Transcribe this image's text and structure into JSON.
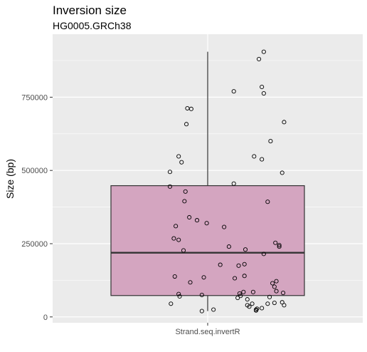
{
  "chart_data": {
    "type": "box",
    "title": "Inversion size",
    "subtitle": "HG0005.GRCh38",
    "xlabel": "",
    "ylabel": "Size (bp)",
    "categories": [
      "Strand.seq.invertR"
    ],
    "ylim": [
      -20000,
      965000
    ],
    "yticks": [
      0,
      250000,
      500000,
      750000
    ],
    "ytick_labels": [
      "0",
      "250000",
      "500000",
      "750000"
    ],
    "grid": true,
    "colors": {
      "panel_bg": "#ebebeb",
      "grid": "#ffffff",
      "box_fill": "#d4a5c0",
      "box_stroke": "#333333",
      "point_stroke": "#000000"
    },
    "box": {
      "lower_whisker": 20000,
      "q1": 73000,
      "median": 219000,
      "q3": 448000,
      "upper_whisker": 905000
    },
    "points": [
      {
        "x": 0.58,
        "y": 905000
      },
      {
        "x": 0.53,
        "y": 880000
      },
      {
        "x": 0.27,
        "y": 770000
      },
      {
        "x": 0.56,
        "y": 785000
      },
      {
        "x": 0.58,
        "y": 763000
      },
      {
        "x": -0.21,
        "y": 712000
      },
      {
        "x": -0.17,
        "y": 710000
      },
      {
        "x": -0.22,
        "y": 658000
      },
      {
        "x": 0.79,
        "y": 665000
      },
      {
        "x": 0.65,
        "y": 600000
      },
      {
        "x": -0.3,
        "y": 548000
      },
      {
        "x": -0.27,
        "y": 528000
      },
      {
        "x": 0.48,
        "y": 548000
      },
      {
        "x": 0.56,
        "y": 538000
      },
      {
        "x": -0.39,
        "y": 495000
      },
      {
        "x": 0.77,
        "y": 492000
      },
      {
        "x": 0.27,
        "y": 455000
      },
      {
        "x": -0.39,
        "y": 445000
      },
      {
        "x": -0.23,
        "y": 428000
      },
      {
        "x": -0.24,
        "y": 395000
      },
      {
        "x": 0.62,
        "y": 393000
      },
      {
        "x": -0.19,
        "y": 340000
      },
      {
        "x": -0.11,
        "y": 330000
      },
      {
        "x": -0.01,
        "y": 320000
      },
      {
        "x": 0.17,
        "y": 307000
      },
      {
        "x": -0.33,
        "y": 310000
      },
      {
        "x": -0.35,
        "y": 268000
      },
      {
        "x": -0.3,
        "y": 263000
      },
      {
        "x": 0.7,
        "y": 253000
      },
      {
        "x": 0.74,
        "y": 245000
      },
      {
        "x": 0.74,
        "y": 240000
      },
      {
        "x": 0.22,
        "y": 240000
      },
      {
        "x": 0.39,
        "y": 230000
      },
      {
        "x": -0.25,
        "y": 227000
      },
      {
        "x": 0.58,
        "y": 215000
      },
      {
        "x": 0.38,
        "y": 180000
      },
      {
        "x": 0.32,
        "y": 175000
      },
      {
        "x": 0.13,
        "y": 178000
      },
      {
        "x": -0.34,
        "y": 138000
      },
      {
        "x": 0.38,
        "y": 140000
      },
      {
        "x": 0.28,
        "y": 132000
      },
      {
        "x": -0.04,
        "y": 135000
      },
      {
        "x": 0.71,
        "y": 122000
      },
      {
        "x": -0.18,
        "y": 118000
      },
      {
        "x": 0.67,
        "y": 115000
      },
      {
        "x": 0.69,
        "y": 103000
      },
      {
        "x": 0.71,
        "y": 88000
      },
      {
        "x": 0.47,
        "y": 85000
      },
      {
        "x": 0.37,
        "y": 85000
      },
      {
        "x": 0.33,
        "y": 80000
      },
      {
        "x": 0.34,
        "y": 72000
      },
      {
        "x": -0.06,
        "y": 75000
      },
      {
        "x": -0.3,
        "y": 78000
      },
      {
        "x": -0.29,
        "y": 70000
      },
      {
        "x": 0.31,
        "y": 65000
      },
      {
        "x": 0.64,
        "y": 68000
      },
      {
        "x": 0.41,
        "y": 60000
      },
      {
        "x": 0.78,
        "y": 82000
      },
      {
        "x": 0.77,
        "y": 50000
      },
      {
        "x": 0.46,
        "y": 45000
      },
      {
        "x": 0.41,
        "y": 40000
      },
      {
        "x": 0.43,
        "y": 35000
      },
      {
        "x": 0.56,
        "y": 30000
      },
      {
        "x": 0.62,
        "y": 45000
      },
      {
        "x": 0.79,
        "y": 40000
      },
      {
        "x": 0.69,
        "y": 48000
      },
      {
        "x": -0.38,
        "y": 45000
      },
      {
        "x": 0.51,
        "y": 28000
      },
      {
        "x": 0.5,
        "y": 25000
      },
      {
        "x": 0.5,
        "y": 22000
      },
      {
        "x": 0.06,
        "y": 25000
      },
      {
        "x": -0.06,
        "y": 20000
      }
    ]
  }
}
